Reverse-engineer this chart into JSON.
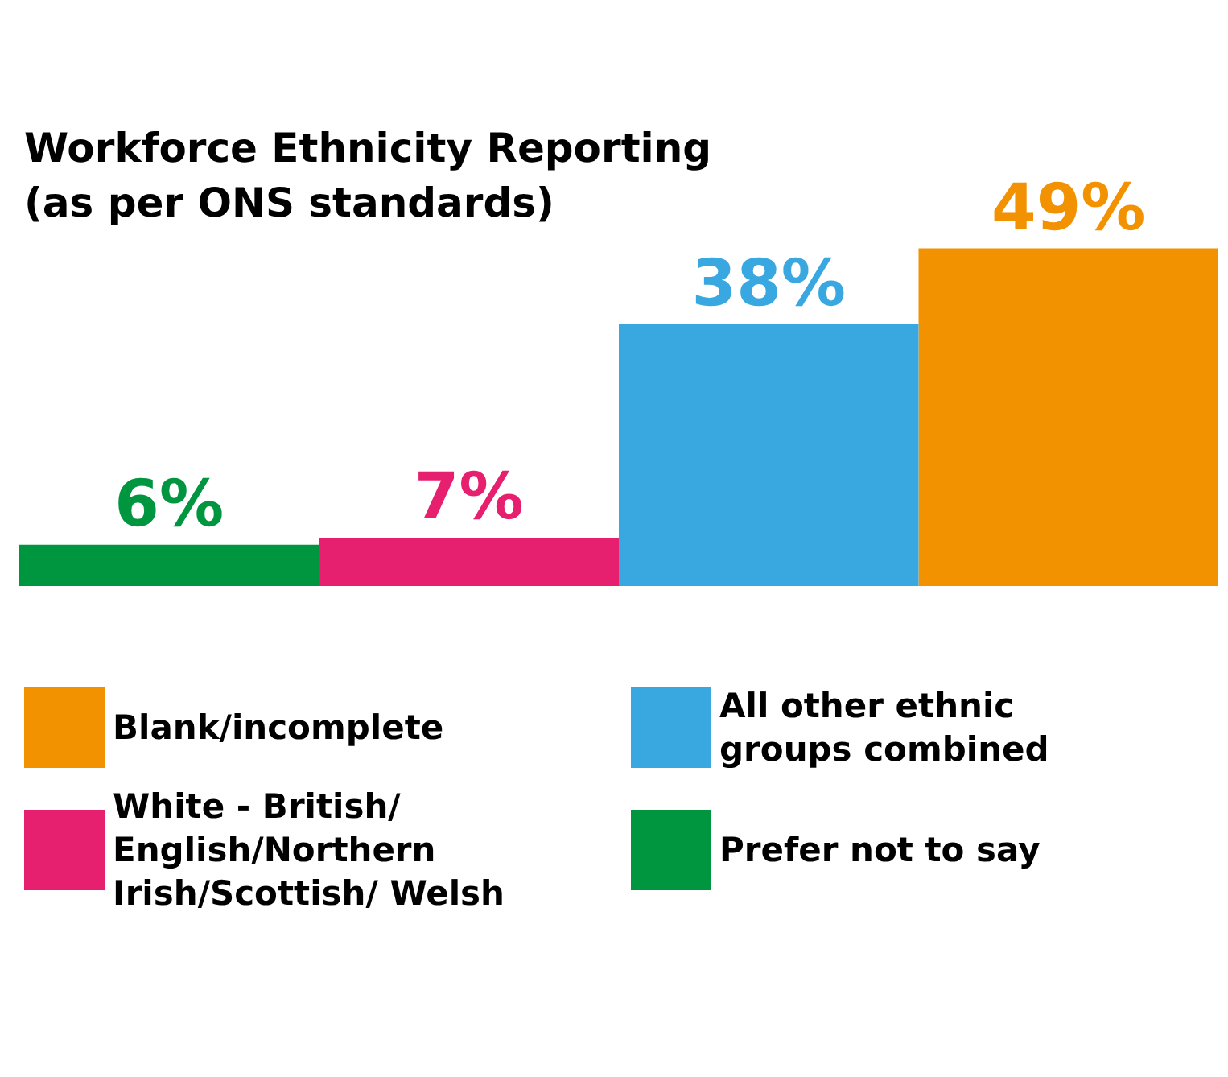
{
  "chart_data": {
    "type": "bar",
    "title": "Workforce Ethnicity Reporting (as per ONS standards)",
    "categories": [
      null,
      null,
      null,
      null
    ],
    "stacked": true,
    "legend": "bottom",
    "series": [
      {
        "name": "Blank/incomplete",
        "color": "#f39200",
        "values": [
          null,
          null,
          null,
          49
        ],
        "value_labels": [
          null,
          null,
          null,
          "49%"
        ]
      },
      {
        "name": "All other ethnic groups combined",
        "color": "#3aa8e0",
        "values": [
          null,
          null,
          38,
          null
        ],
        "value_labels": [
          null,
          null,
          "38%",
          null
        ]
      },
      {
        "name": "White - British/ English/Northern Irish/Scottish/ Welsh",
        "color": "#e6206f",
        "values": [
          null,
          7,
          null,
          null
        ],
        "value_labels": [
          null,
          "7%",
          null,
          null
        ]
      },
      {
        "name": "Prefer not to say",
        "color": "#009640",
        "values": [
          6,
          null,
          null,
          null
        ],
        "value_labels": [
          "6%",
          null,
          null,
          null
        ]
      }
    ]
  }
}
